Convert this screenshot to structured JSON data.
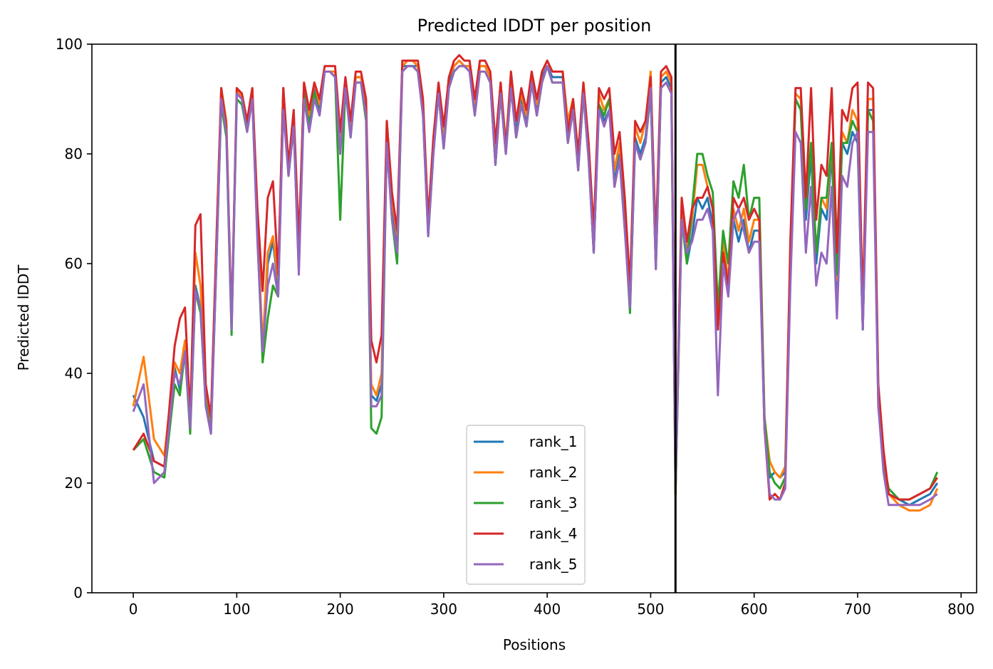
{
  "chart_data": {
    "type": "line",
    "title": "Predicted lDDT per position",
    "xlabel": "Positions",
    "ylabel": "Predicted lDDT",
    "xlim": [
      -40,
      815
    ],
    "ylim": [
      0,
      100
    ],
    "xticks": [
      0,
      100,
      200,
      300,
      400,
      500,
      600,
      700,
      800
    ],
    "yticks": [
      0,
      20,
      40,
      60,
      80,
      100
    ],
    "legend_position": "lower-center",
    "grid": false,
    "vline": {
      "x": 524,
      "color": "#000000"
    },
    "x": [
      0,
      10,
      20,
      30,
      40,
      45,
      50,
      55,
      60,
      65,
      70,
      75,
      80,
      85,
      90,
      95,
      100,
      105,
      110,
      115,
      120,
      125,
      130,
      135,
      140,
      145,
      150,
      155,
      160,
      165,
      170,
      175,
      180,
      185,
      190,
      195,
      200,
      205,
      210,
      215,
      220,
      225,
      230,
      235,
      240,
      245,
      250,
      255,
      260,
      265,
      270,
      275,
      280,
      285,
      290,
      295,
      300,
      305,
      310,
      315,
      320,
      325,
      330,
      335,
      340,
      345,
      350,
      355,
      360,
      365,
      370,
      375,
      380,
      385,
      390,
      395,
      400,
      405,
      410,
      415,
      420,
      425,
      430,
      435,
      440,
      445,
      450,
      455,
      460,
      465,
      470,
      475,
      480,
      485,
      490,
      495,
      500,
      505,
      510,
      515,
      520,
      524,
      530,
      535,
      540,
      545,
      550,
      555,
      560,
      565,
      570,
      575,
      580,
      585,
      590,
      595,
      600,
      605,
      610,
      615,
      620,
      625,
      630,
      635,
      640,
      645,
      650,
      655,
      660,
      665,
      670,
      675,
      680,
      685,
      690,
      695,
      700,
      705,
      710,
      715,
      720,
      725,
      730,
      740,
      750,
      760,
      770,
      777
    ],
    "series": [
      {
        "name": "rank_1",
        "color": "#1f77b4",
        "values": [
          36,
          32,
          24,
          23,
          41,
          37,
          45,
          30,
          56,
          52,
          36,
          30,
          60,
          91,
          85,
          48,
          91,
          90,
          85,
          91,
          66,
          44,
          60,
          64,
          56,
          92,
          77,
          86,
          60,
          92,
          86,
          92,
          88,
          95,
          95,
          95,
          82,
          93,
          84,
          94,
          94,
          88,
          36,
          35,
          38,
          84,
          70,
          64,
          96,
          96,
          96,
          96,
          88,
          66,
          81,
          92,
          82,
          93,
          96,
          97,
          96,
          96,
          88,
          96,
          96,
          94,
          78,
          92,
          81,
          93,
          84,
          90,
          86,
          94,
          88,
          94,
          96,
          94,
          94,
          94,
          84,
          89,
          78,
          92,
          80,
          62,
          89,
          86,
          88,
          75,
          80,
          68,
          52,
          83,
          80,
          83,
          92,
          60,
          93,
          94,
          92,
          18,
          70,
          60,
          65,
          72,
          70,
          72,
          67,
          48,
          62,
          55,
          68,
          64,
          68,
          62,
          66,
          66,
          30,
          21,
          22,
          21,
          22,
          60,
          90,
          88,
          68,
          80,
          60,
          70,
          68,
          80,
          55,
          82,
          80,
          84,
          82,
          48,
          88,
          88,
          34,
          25,
          18,
          17,
          16,
          17,
          18,
          20
        ]
      },
      {
        "name": "rank_2",
        "color": "#ff7f0e",
        "values": [
          34,
          43,
          28,
          25,
          42,
          40,
          46,
          31,
          62,
          56,
          37,
          31,
          62,
          92,
          86,
          49,
          92,
          90,
          86,
          92,
          67,
          45,
          62,
          65,
          57,
          92,
          78,
          87,
          62,
          93,
          87,
          93,
          89,
          95,
          95,
          95,
          83,
          93,
          85,
          94,
          94,
          89,
          38,
          36,
          40,
          86,
          72,
          65,
          96,
          97,
          97,
          96,
          89,
          66,
          82,
          92,
          83,
          94,
          96,
          97,
          96,
          96,
          89,
          96,
          96,
          94,
          80,
          93,
          82,
          94,
          86,
          91,
          87,
          95,
          89,
          95,
          97,
          95,
          95,
          95,
          86,
          90,
          80,
          93,
          82,
          64,
          91,
          88,
          90,
          77,
          82,
          70,
          54,
          85,
          82,
          86,
          95,
          62,
          94,
          95,
          93,
          18,
          72,
          62,
          68,
          78,
          78,
          74,
          70,
          50,
          64,
          57,
          70,
          66,
          70,
          64,
          68,
          68,
          32,
          24,
          22,
          21,
          23,
          62,
          91,
          90,
          70,
          82,
          62,
          72,
          70,
          82,
          57,
          84,
          82,
          88,
          86,
          50,
          90,
          90,
          36,
          26,
          18,
          16,
          15,
          15,
          16,
          19
        ]
      },
      {
        "name": "rank_3",
        "color": "#2ca02c",
        "values": [
          26,
          28,
          22,
          21,
          38,
          36,
          44,
          29,
          55,
          51,
          35,
          29,
          58,
          89,
          83,
          47,
          90,
          89,
          84,
          90,
          65,
          42,
          50,
          56,
          54,
          91,
          76,
          85,
          59,
          91,
          85,
          91,
          87,
          95,
          95,
          94,
          68,
          92,
          83,
          93,
          93,
          86,
          30,
          29,
          32,
          82,
          68,
          60,
          95,
          96,
          96,
          95,
          87,
          65,
          80,
          91,
          81,
          92,
          95,
          96,
          96,
          95,
          87,
          95,
          95,
          93,
          78,
          91,
          80,
          92,
          83,
          89,
          85,
          93,
          87,
          93,
          96,
          93,
          93,
          93,
          82,
          88,
          77,
          91,
          79,
          62,
          89,
          87,
          90,
          74,
          79,
          67,
          51,
          82,
          79,
          82,
          91,
          59,
          92,
          93,
          91,
          18,
          68,
          60,
          70,
          80,
          80,
          76,
          73,
          52,
          66,
          60,
          75,
          72,
          78,
          68,
          72,
          72,
          32,
          22,
          20,
          19,
          21,
          60,
          90,
          88,
          70,
          82,
          62,
          72,
          72,
          82,
          58,
          82,
          82,
          86,
          84,
          48,
          88,
          86,
          36,
          24,
          19,
          17,
          17,
          18,
          19,
          22
        ]
      },
      {
        "name": "rank_4",
        "color": "#d62728",
        "values": [
          26,
          29,
          24,
          23,
          45,
          50,
          52,
          32,
          67,
          69,
          38,
          32,
          62,
          92,
          85,
          49,
          92,
          91,
          86,
          92,
          70,
          55,
          72,
          75,
          58,
          92,
          78,
          88,
          64,
          93,
          88,
          93,
          90,
          96,
          96,
          96,
          84,
          94,
          86,
          95,
          95,
          90,
          46,
          42,
          47,
          86,
          73,
          66,
          97,
          97,
          97,
          97,
          90,
          68,
          83,
          93,
          85,
          94,
          97,
          98,
          97,
          97,
          90,
          97,
          97,
          95,
          82,
          93,
          81,
          95,
          86,
          92,
          88,
          95,
          90,
          95,
          97,
          95,
          95,
          95,
          84,
          90,
          80,
          93,
          82,
          66,
          92,
          90,
          92,
          80,
          84,
          72,
          56,
          86,
          84,
          86,
          94,
          64,
          95,
          96,
          94,
          20,
          72,
          64,
          70,
          72,
          72,
          74,
          70,
          48,
          62,
          56,
          72,
          70,
          72,
          68,
          70,
          68,
          30,
          17,
          18,
          17,
          20,
          64,
          92,
          92,
          72,
          92,
          68,
          78,
          76,
          92,
          62,
          88,
          86,
          92,
          93,
          52,
          93,
          92,
          38,
          26,
          18,
          17,
          17,
          18,
          19,
          21
        ]
      },
      {
        "name": "rank_5",
        "color": "#9467bd",
        "values": [
          33,
          38,
          20,
          22,
          40,
          38,
          44,
          30,
          55,
          52,
          34,
          29,
          58,
          90,
          84,
          48,
          91,
          90,
          84,
          90,
          64,
          44,
          56,
          60,
          54,
          88,
          76,
          85,
          58,
          90,
          84,
          90,
          87,
          95,
          95,
          94,
          80,
          92,
          83,
          93,
          93,
          87,
          34,
          34,
          36,
          82,
          68,
          62,
          95,
          96,
          96,
          95,
          87,
          65,
          80,
          91,
          81,
          92,
          95,
          96,
          96,
          95,
          87,
          95,
          95,
          93,
          78,
          91,
          80,
          92,
          83,
          89,
          85,
          93,
          87,
          93,
          96,
          93,
          93,
          93,
          82,
          88,
          77,
          91,
          79,
          62,
          88,
          85,
          88,
          74,
          79,
          66,
          52,
          82,
          79,
          82,
          92,
          59,
          92,
          93,
          91,
          20,
          68,
          62,
          64,
          68,
          68,
          70,
          66,
          36,
          60,
          54,
          68,
          70,
          66,
          62,
          64,
          64,
          30,
          18,
          17,
          17,
          19,
          56,
          84,
          82,
          62,
          74,
          56,
          62,
          60,
          74,
          50,
          76,
          74,
          82,
          84,
          48,
          84,
          84,
          34,
          22,
          16,
          16,
          16,
          16,
          17,
          18
        ]
      }
    ]
  }
}
